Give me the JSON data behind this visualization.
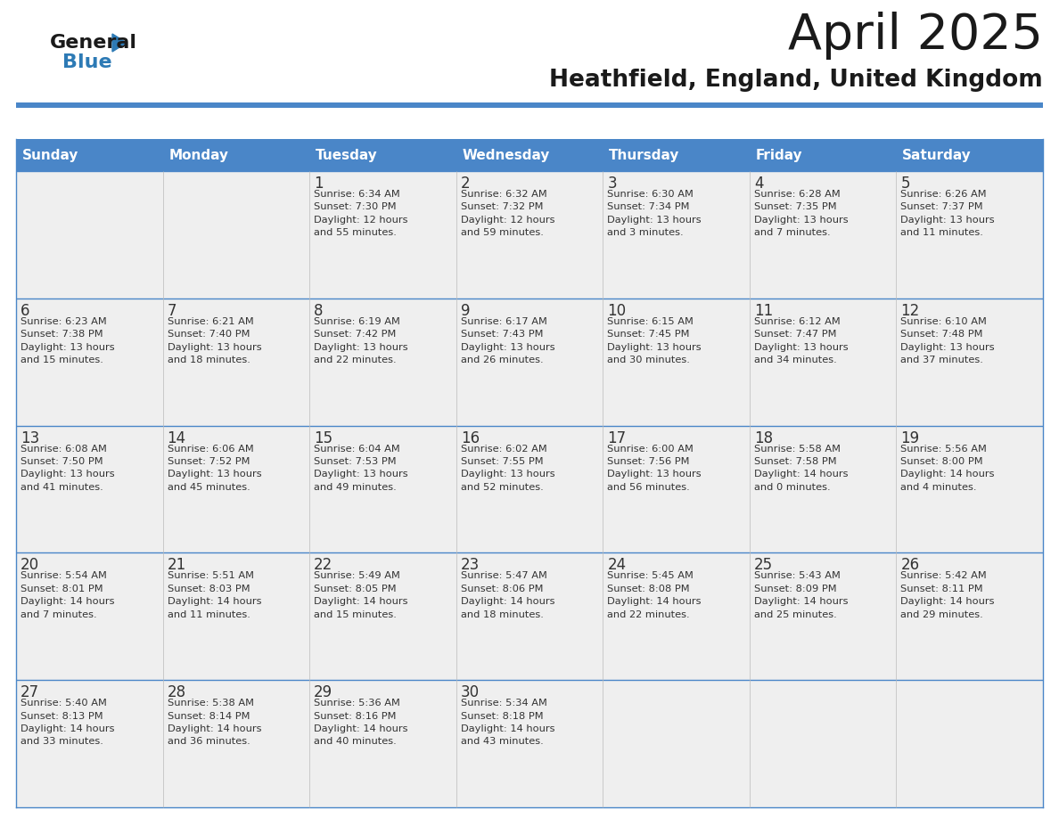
{
  "title": "April 2025",
  "subtitle": "Heathfield, England, United Kingdom",
  "days_of_week": [
    "Sunday",
    "Monday",
    "Tuesday",
    "Wednesday",
    "Thursday",
    "Friday",
    "Saturday"
  ],
  "header_bg": "#4a86c8",
  "header_text_color": "#ffffff",
  "row_bg": "#efefef",
  "cell_text_color": "#333333",
  "day_num_color": "#333333",
  "border_color": "#4a86c8",
  "row_divider_color": "#4a86c8",
  "title_color": "#1a1a1a",
  "subtitle_color": "#1a1a1a",
  "logo_text_color": "#1a1a1a",
  "logo_blue_color": "#2d7ab5",
  "weeks": [
    [
      {
        "day": "",
        "info": ""
      },
      {
        "day": "",
        "info": ""
      },
      {
        "day": "1",
        "info": "Sunrise: 6:34 AM\nSunset: 7:30 PM\nDaylight: 12 hours\nand 55 minutes."
      },
      {
        "day": "2",
        "info": "Sunrise: 6:32 AM\nSunset: 7:32 PM\nDaylight: 12 hours\nand 59 minutes."
      },
      {
        "day": "3",
        "info": "Sunrise: 6:30 AM\nSunset: 7:34 PM\nDaylight: 13 hours\nand 3 minutes."
      },
      {
        "day": "4",
        "info": "Sunrise: 6:28 AM\nSunset: 7:35 PM\nDaylight: 13 hours\nand 7 minutes."
      },
      {
        "day": "5",
        "info": "Sunrise: 6:26 AM\nSunset: 7:37 PM\nDaylight: 13 hours\nand 11 minutes."
      }
    ],
    [
      {
        "day": "6",
        "info": "Sunrise: 6:23 AM\nSunset: 7:38 PM\nDaylight: 13 hours\nand 15 minutes."
      },
      {
        "day": "7",
        "info": "Sunrise: 6:21 AM\nSunset: 7:40 PM\nDaylight: 13 hours\nand 18 minutes."
      },
      {
        "day": "8",
        "info": "Sunrise: 6:19 AM\nSunset: 7:42 PM\nDaylight: 13 hours\nand 22 minutes."
      },
      {
        "day": "9",
        "info": "Sunrise: 6:17 AM\nSunset: 7:43 PM\nDaylight: 13 hours\nand 26 minutes."
      },
      {
        "day": "10",
        "info": "Sunrise: 6:15 AM\nSunset: 7:45 PM\nDaylight: 13 hours\nand 30 minutes."
      },
      {
        "day": "11",
        "info": "Sunrise: 6:12 AM\nSunset: 7:47 PM\nDaylight: 13 hours\nand 34 minutes."
      },
      {
        "day": "12",
        "info": "Sunrise: 6:10 AM\nSunset: 7:48 PM\nDaylight: 13 hours\nand 37 minutes."
      }
    ],
    [
      {
        "day": "13",
        "info": "Sunrise: 6:08 AM\nSunset: 7:50 PM\nDaylight: 13 hours\nand 41 minutes."
      },
      {
        "day": "14",
        "info": "Sunrise: 6:06 AM\nSunset: 7:52 PM\nDaylight: 13 hours\nand 45 minutes."
      },
      {
        "day": "15",
        "info": "Sunrise: 6:04 AM\nSunset: 7:53 PM\nDaylight: 13 hours\nand 49 minutes."
      },
      {
        "day": "16",
        "info": "Sunrise: 6:02 AM\nSunset: 7:55 PM\nDaylight: 13 hours\nand 52 minutes."
      },
      {
        "day": "17",
        "info": "Sunrise: 6:00 AM\nSunset: 7:56 PM\nDaylight: 13 hours\nand 56 minutes."
      },
      {
        "day": "18",
        "info": "Sunrise: 5:58 AM\nSunset: 7:58 PM\nDaylight: 14 hours\nand 0 minutes."
      },
      {
        "day": "19",
        "info": "Sunrise: 5:56 AM\nSunset: 8:00 PM\nDaylight: 14 hours\nand 4 minutes."
      }
    ],
    [
      {
        "day": "20",
        "info": "Sunrise: 5:54 AM\nSunset: 8:01 PM\nDaylight: 14 hours\nand 7 minutes."
      },
      {
        "day": "21",
        "info": "Sunrise: 5:51 AM\nSunset: 8:03 PM\nDaylight: 14 hours\nand 11 minutes."
      },
      {
        "day": "22",
        "info": "Sunrise: 5:49 AM\nSunset: 8:05 PM\nDaylight: 14 hours\nand 15 minutes."
      },
      {
        "day": "23",
        "info": "Sunrise: 5:47 AM\nSunset: 8:06 PM\nDaylight: 14 hours\nand 18 minutes."
      },
      {
        "day": "24",
        "info": "Sunrise: 5:45 AM\nSunset: 8:08 PM\nDaylight: 14 hours\nand 22 minutes."
      },
      {
        "day": "25",
        "info": "Sunrise: 5:43 AM\nSunset: 8:09 PM\nDaylight: 14 hours\nand 25 minutes."
      },
      {
        "day": "26",
        "info": "Sunrise: 5:42 AM\nSunset: 8:11 PM\nDaylight: 14 hours\nand 29 minutes."
      }
    ],
    [
      {
        "day": "27",
        "info": "Sunrise: 5:40 AM\nSunset: 8:13 PM\nDaylight: 14 hours\nand 33 minutes."
      },
      {
        "day": "28",
        "info": "Sunrise: 5:38 AM\nSunset: 8:14 PM\nDaylight: 14 hours\nand 36 minutes."
      },
      {
        "day": "29",
        "info": "Sunrise: 5:36 AM\nSunset: 8:16 PM\nDaylight: 14 hours\nand 40 minutes."
      },
      {
        "day": "30",
        "info": "Sunrise: 5:34 AM\nSunset: 8:18 PM\nDaylight: 14 hours\nand 43 minutes."
      },
      {
        "day": "",
        "info": ""
      },
      {
        "day": "",
        "info": ""
      },
      {
        "day": "",
        "info": ""
      }
    ]
  ]
}
